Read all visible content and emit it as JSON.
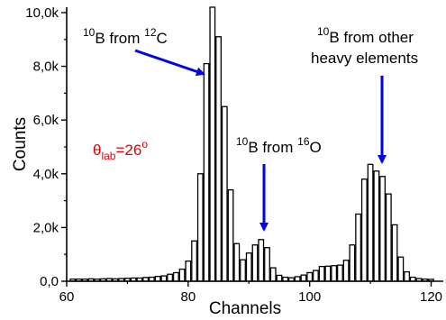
{
  "chart_data": {
    "type": "bar",
    "xlabel": "Channels",
    "ylabel": "Counts",
    "xlim": [
      60,
      122
    ],
    "ylim": [
      0,
      10200
    ],
    "x_ticks": [
      60,
      80,
      100,
      120
    ],
    "x_tick_labels": [
      "60",
      "80",
      "100",
      "120"
    ],
    "y_ticks": [
      0,
      2000,
      4000,
      6000,
      8000,
      10000
    ],
    "y_tick_labels": [
      "0,0",
      "2,0k",
      "4,0k",
      "6,0k",
      "8,0k",
      "10,0k"
    ],
    "grid": false,
    "x": [
      61,
      62,
      63,
      64,
      65,
      66,
      67,
      68,
      69,
      70,
      71,
      72,
      73,
      74,
      75,
      76,
      77,
      78,
      79,
      80,
      81,
      82,
      83,
      84,
      85,
      86,
      87,
      88,
      89,
      90,
      91,
      92,
      93,
      94,
      95,
      96,
      97,
      98,
      99,
      100,
      101,
      102,
      103,
      104,
      105,
      106,
      107,
      108,
      109,
      110,
      111,
      112,
      113,
      114,
      115,
      116,
      117,
      118,
      119,
      120
    ],
    "values": [
      80,
      80,
      80,
      90,
      80,
      90,
      100,
      90,
      100,
      110,
      120,
      120,
      140,
      150,
      180,
      200,
      260,
      320,
      450,
      750,
      1500,
      4000,
      8100,
      10200,
      9100,
      6500,
      3400,
      1400,
      800,
      1050,
      1350,
      1550,
      1250,
      500,
      220,
      150,
      130,
      170,
      230,
      320,
      400,
      550,
      560,
      580,
      600,
      780,
      1350,
      2500,
      3800,
      4350,
      4100,
      3900,
      3250,
      2100,
      900,
      350,
      150,
      100,
      80,
      70
    ],
    "annotations": [
      {
        "pre": "10",
        "main": "B from ",
        "post_sup": "12",
        "post": "C",
        "color": "#000000"
      },
      {
        "pre": "10",
        "main": "B from ",
        "post_sup": "16",
        "post": "O",
        "color": "#000000"
      },
      {
        "pre": "10",
        "main": "B from other",
        "line2": "heavy elements",
        "color": "#000000"
      },
      {
        "theta": "θ",
        "sub": "lab",
        "eq": "=26",
        "sup": "o",
        "color": "#e00000"
      }
    ],
    "arrow_color": "#0000ee"
  }
}
